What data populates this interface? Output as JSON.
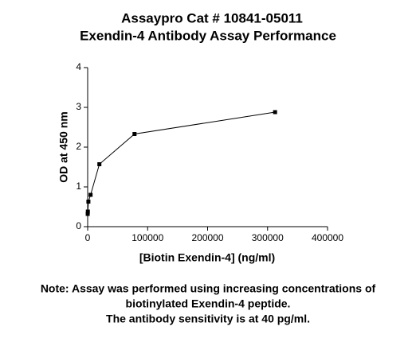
{
  "chart_data": {
    "type": "line",
    "title": "Assaypro Cat # 10841-05011",
    "subtitle": "Exendin-4 Antibody Assay Performance",
    "x_label": "[Biotin Exendin-4] (ng/ml)",
    "y_label": "OD at 450 nm",
    "annotations": [
      "Note: Assay was performed using increasing concentrations of",
      "biotinylated Exendin-4 peptide.",
      "The antibody sensitivity is at 40 pg/ml."
    ],
    "x": [
      76,
      305,
      1221,
      4883,
      19531,
      78125,
      312500
    ],
    "series": [
      {
        "color": "#000000",
        "values": [
          0.32,
          0.38,
          0.63,
          0.8,
          1.57,
          2.33,
          2.88
        ]
      }
    ],
    "xlim": [
      0,
      400000
    ],
    "xticks": [
      0,
      100000,
      200000,
      300000,
      400000
    ],
    "ylim": [
      0,
      4
    ],
    "yticks": [
      0,
      1,
      2,
      3,
      4
    ],
    "grid": false
  }
}
